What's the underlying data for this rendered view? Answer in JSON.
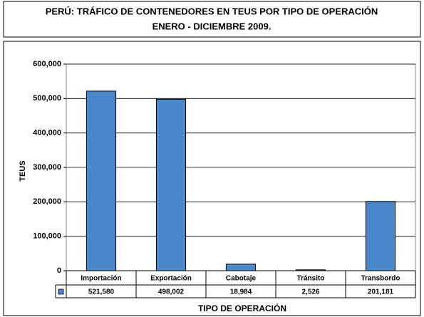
{
  "chart_data": {
    "type": "bar",
    "title": "PERÚ: TRÁFICO DE CONTENEDORES EN TEUS POR TIPO DE OPERACIÓN",
    "subtitle": "ENERO - DICIEMBRE 2009.",
    "y_label": "TEUS",
    "x_label": "TIPO DE OPERACIÓN",
    "categories": [
      "Importación",
      "Exportación",
      "Cabotaje",
      "Tránsito",
      "Transbordo"
    ],
    "values": [
      521580,
      498002,
      18984,
      2526,
      201181
    ],
    "value_labels": [
      "521,580",
      "498,002",
      "18,984",
      "2,526",
      "201,181"
    ],
    "color": "#4a88cc",
    "ylim": [
      0,
      600000
    ],
    "yticks": [
      0,
      {
        "value": 100000,
        "label": "100,000"
      },
      {
        "value": 200000,
        "label": "200,000"
      },
      {
        "value": 300000,
        "label": "300,000"
      },
      {
        "value": 400000,
        "label": "400,000"
      },
      {
        "value": 500000,
        "label": "500,000"
      },
      {
        "value": 600000,
        "label": "600,000"
      }
    ],
    "grid": true
  }
}
